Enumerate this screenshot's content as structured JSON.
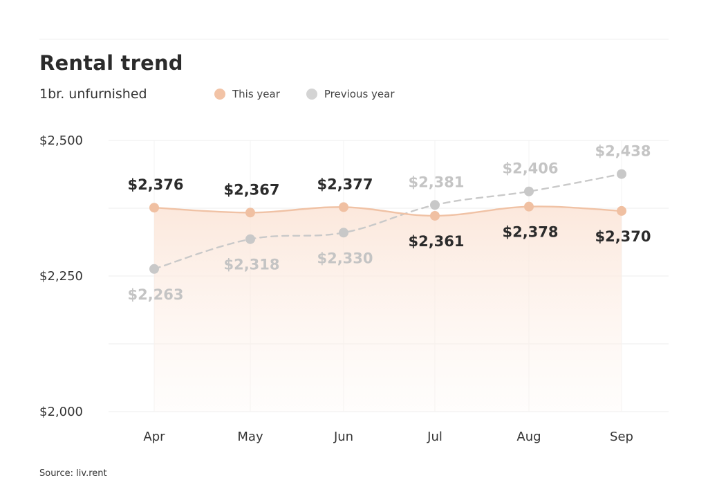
{
  "chart_data": {
    "type": "line",
    "title": "Rental trend",
    "subtitle": "1br. unfurnished",
    "categories": [
      "Apr",
      "May",
      "Jun",
      "Jul",
      "Aug",
      "Sep"
    ],
    "series": [
      {
        "name": "This year",
        "color": "#f2c3a6",
        "values": [
          2376,
          2367,
          2377,
          2361,
          2378,
          2370
        ],
        "labels": [
          "$2,376",
          "$2,367",
          "$2,377",
          "$2,361",
          "$2,378",
          "$2,370"
        ],
        "line_style": "solid",
        "area_fill": true
      },
      {
        "name": "Previous year",
        "color": "#cccccc",
        "values": [
          2263,
          2318,
          2330,
          2381,
          2406,
          2438
        ],
        "labels": [
          "$2,263",
          "$2,318",
          "$2,330",
          "$2,381",
          "$2,406",
          "$2,438"
        ],
        "line_style": "dashed"
      }
    ],
    "y_ticks": [
      {
        "value": 2500,
        "label": "$2,500"
      },
      {
        "value": 2250,
        "label": "$2,250"
      },
      {
        "value": 2000,
        "label": "$2,000"
      }
    ],
    "ylim": [
      2000,
      2500
    ],
    "grid": true,
    "legend": "top"
  },
  "source": "Source: liv.rent"
}
